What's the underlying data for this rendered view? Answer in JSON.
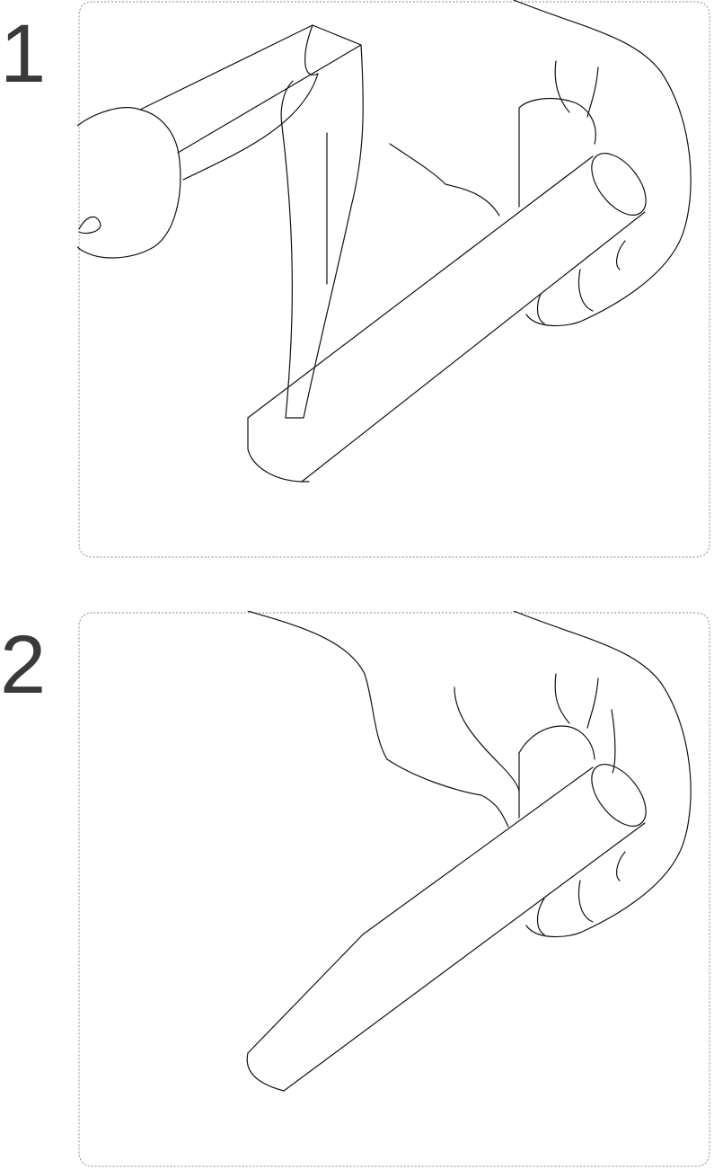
{
  "steps": [
    {
      "number": "1",
      "illustration": "hand-holding-rod-with-hammer-tapping-end"
    },
    {
      "number": "2",
      "illustration": "hand-holding-tapered-rod"
    }
  ],
  "icons": {
    "frame": "rounded-dashed-frame",
    "hand": "hand-icon",
    "hammer": "hammer-icon",
    "rod": "rod-icon"
  }
}
